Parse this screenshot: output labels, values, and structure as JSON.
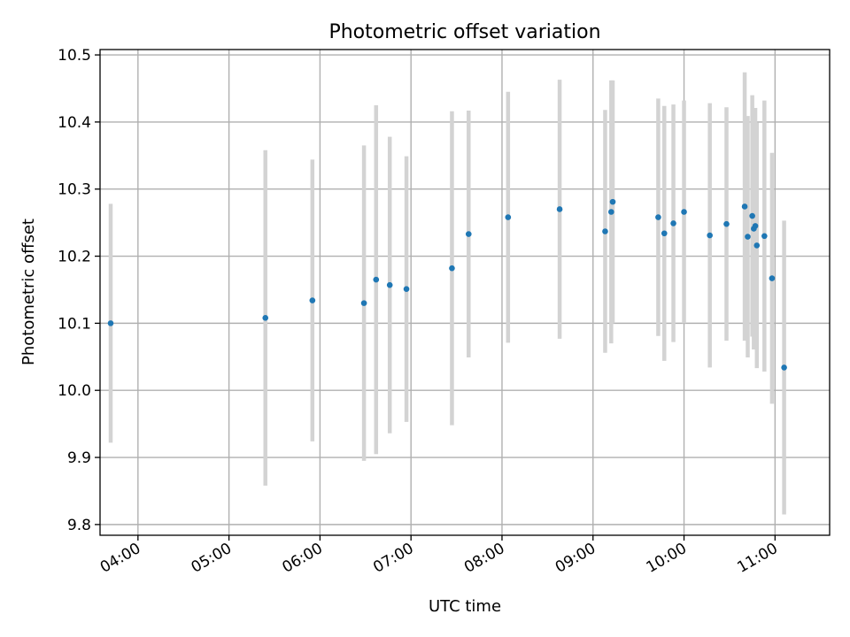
{
  "chart_data": {
    "type": "scatter",
    "title": "Photometric offset variation",
    "xlabel": "UTC time",
    "ylabel": "Photometric offset",
    "x_unit": "UTC time (HH:MM)",
    "xlim": [
      "03:35",
      "11:36"
    ],
    "ylim": [
      9.784,
      10.508
    ],
    "x_ticks": [
      "04:00",
      "05:00",
      "06:00",
      "07:00",
      "08:00",
      "09:00",
      "10:00",
      "11:00"
    ],
    "y_ticks": [
      9.8,
      9.9,
      10.0,
      10.1,
      10.2,
      10.3,
      10.4,
      10.5
    ],
    "y_tick_labels": [
      "9.8",
      "9.9",
      "10.0",
      "10.1",
      "10.2",
      "10.3",
      "10.4",
      "10.5"
    ],
    "grid": true,
    "legend": "none",
    "colors": {
      "point": "#1f77b4",
      "errorbar": "#d3d3d3"
    },
    "points": [
      {
        "x": "03:42",
        "y": 10.1,
        "err": 0.178
      },
      {
        "x": "05:24",
        "y": 10.108,
        "err": 0.25
      },
      {
        "x": "05:55",
        "y": 10.134,
        "err": 0.21
      },
      {
        "x": "06:29",
        "y": 10.13,
        "err": 0.235
      },
      {
        "x": "06:37",
        "y": 10.165,
        "err": 0.26
      },
      {
        "x": "06:46",
        "y": 10.157,
        "err": 0.221
      },
      {
        "x": "06:57",
        "y": 10.151,
        "err": 0.198
      },
      {
        "x": "07:27",
        "y": 10.182,
        "err": 0.234
      },
      {
        "x": "07:38",
        "y": 10.233,
        "err": 0.184
      },
      {
        "x": "08:04",
        "y": 10.258,
        "err": 0.187
      },
      {
        "x": "08:38",
        "y": 10.27,
        "err": 0.193
      },
      {
        "x": "09:08",
        "y": 10.237,
        "err": 0.181
      },
      {
        "x": "09:12",
        "y": 10.266,
        "err": 0.196
      },
      {
        "x": "09:13",
        "y": 10.281,
        "err": 0.181
      },
      {
        "x": "09:43",
        "y": 10.258,
        "err": 0.177
      },
      {
        "x": "09:47",
        "y": 10.234,
        "err": 0.19
      },
      {
        "x": "09:53",
        "y": 10.249,
        "err": 0.177
      },
      {
        "x": "10:00",
        "y": 10.266,
        "err": 0.166
      },
      {
        "x": "10:17",
        "y": 10.231,
        "err": 0.197
      },
      {
        "x": "10:28",
        "y": 10.248,
        "err": 0.174
      },
      {
        "x": "10:40",
        "y": 10.274,
        "err": 0.2
      },
      {
        "x": "10:42",
        "y": 10.229,
        "err": 0.18
      },
      {
        "x": "10:45",
        "y": 10.26,
        "err": 0.18
      },
      {
        "x": "10:46",
        "y": 10.241,
        "err": 0.18
      },
      {
        "x": "10:47",
        "y": 10.245,
        "err": 0.176
      },
      {
        "x": "10:48",
        "y": 10.216,
        "err": 0.183
      },
      {
        "x": "10:53",
        "y": 10.23,
        "err": 0.202
      },
      {
        "x": "10:58",
        "y": 10.167,
        "err": 0.187
      },
      {
        "x": "11:06",
        "y": 10.034,
        "err": 0.219
      }
    ]
  }
}
